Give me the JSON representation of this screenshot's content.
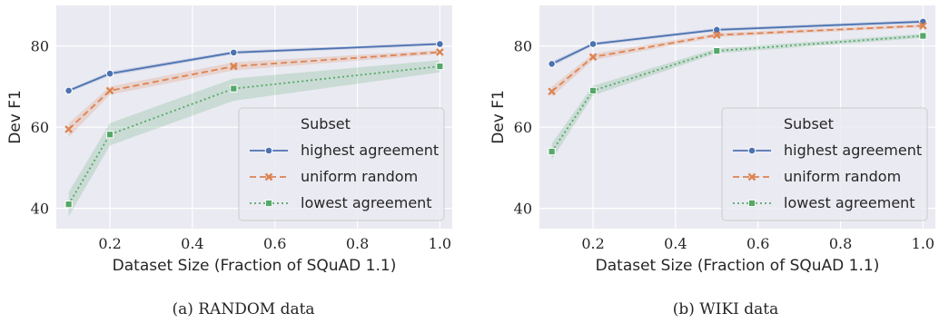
{
  "chart_data": [
    {
      "type": "line",
      "caption": "(a) RANDOM data",
      "xlabel": "Dataset Size (Fraction of SQuAD 1.1)",
      "ylabel": "Dev F1",
      "xlim": [
        0.07,
        1.03
      ],
      "ylim": [
        35,
        90
      ],
      "xticks": [
        0.2,
        0.4,
        0.6,
        0.8,
        1.0
      ],
      "xtick_labels": [
        "0.2",
        "0.4",
        "0.6",
        "0.8",
        "1.0"
      ],
      "yticks": [
        40,
        60,
        80
      ],
      "ytick_labels": [
        "40",
        "60",
        "80"
      ],
      "grid": true,
      "legend": {
        "title": "Subset",
        "placement": "bottom-right",
        "labels": [
          "highest agreement",
          "uniform random",
          "lowest agreement"
        ]
      },
      "x": [
        0.1,
        0.2,
        0.5,
        1.0
      ],
      "series": [
        {
          "name": "highest agreement",
          "values": [
            69.0,
            73.2,
            78.4,
            80.5
          ],
          "band_low": [
            68.6,
            72.7,
            78.0,
            80.1
          ],
          "band_high": [
            69.4,
            73.7,
            78.8,
            80.9
          ]
        },
        {
          "name": "uniform random",
          "values": [
            59.5,
            69.0,
            75.0,
            78.5
          ],
          "band_low": [
            57.5,
            68.0,
            74.0,
            78.0
          ],
          "band_high": [
            61.0,
            70.0,
            76.0,
            79.0
          ]
        },
        {
          "name": "lowest agreement",
          "values": [
            41.0,
            58.2,
            69.5,
            75.0
          ],
          "band_low": [
            38.0,
            55.5,
            66.5,
            73.5
          ],
          "band_high": [
            44.0,
            61.0,
            72.0,
            76.5
          ]
        }
      ]
    },
    {
      "type": "line",
      "caption": "(b) WIKI data",
      "xlabel": "Dataset Size (Fraction of SQuAD 1.1)",
      "ylabel": "Dev F1",
      "xlim": [
        0.07,
        1.03
      ],
      "ylim": [
        35,
        90
      ],
      "xticks": [
        0.2,
        0.4,
        0.6,
        0.8,
        1.0
      ],
      "xtick_labels": [
        "0.2",
        "0.4",
        "0.6",
        "0.8",
        "1.0"
      ],
      "yticks": [
        40,
        60,
        80
      ],
      "ytick_labels": [
        "40",
        "60",
        "80"
      ],
      "grid": true,
      "legend": {
        "title": "Subset",
        "placement": "bottom-right",
        "labels": [
          "highest agreement",
          "uniform random",
          "lowest agreement"
        ]
      },
      "x": [
        0.1,
        0.2,
        0.5,
        1.0
      ],
      "series": [
        {
          "name": "highest agreement",
          "values": [
            75.6,
            80.5,
            84.0,
            86.0
          ],
          "band_low": [
            75.0,
            80.1,
            83.6,
            85.6
          ],
          "band_high": [
            76.2,
            80.9,
            84.4,
            86.4
          ]
        },
        {
          "name": "uniform random",
          "values": [
            68.8,
            77.3,
            82.7,
            85.0
          ],
          "band_low": [
            67.5,
            76.5,
            82.2,
            84.6
          ],
          "band_high": [
            70.0,
            78.1,
            83.2,
            85.4
          ]
        },
        {
          "name": "lowest agreement",
          "values": [
            54.0,
            69.0,
            78.8,
            82.5
          ],
          "band_low": [
            52.0,
            67.8,
            78.2,
            82.0
          ],
          "band_high": [
            56.0,
            70.2,
            79.4,
            83.0
          ]
        }
      ]
    }
  ],
  "colors": {
    "plot_background": "#eaeaf2",
    "grid": "#ffffff",
    "series": [
      "#4c72b0",
      "#dd8452",
      "#55a868"
    ],
    "text": "#262626",
    "legend_frame": "#cccccc"
  },
  "markers": [
    "circle",
    "x",
    "square"
  ],
  "line_styles": [
    "solid",
    "dashed",
    "dotted"
  ]
}
